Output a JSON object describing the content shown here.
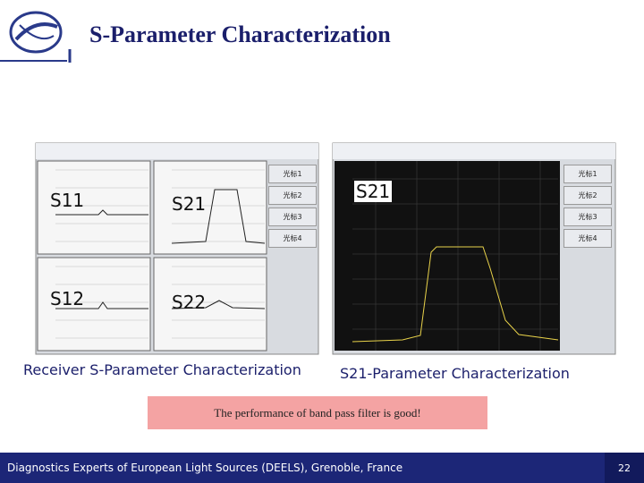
{
  "header": {
    "title": "S-Parameter Characterization"
  },
  "left_panel": {
    "labels": [
      "S11",
      "S21",
      "S12",
      "S22"
    ],
    "buttons": [
      "光标1",
      "光标2",
      "光标3",
      "光标4"
    ],
    "caption": "Receiver S-Parameter Characterization"
  },
  "right_panel": {
    "label": "S21",
    "buttons": [
      "光标1",
      "光标2",
      "光标3",
      "光标4"
    ],
    "caption": "S21-Parameter Characterization"
  },
  "note": "The performance of band pass filter is good!",
  "footer": {
    "text": "Diagnostics Experts of European Light Sources (DEELS), Grenoble, France",
    "page": "22"
  }
}
